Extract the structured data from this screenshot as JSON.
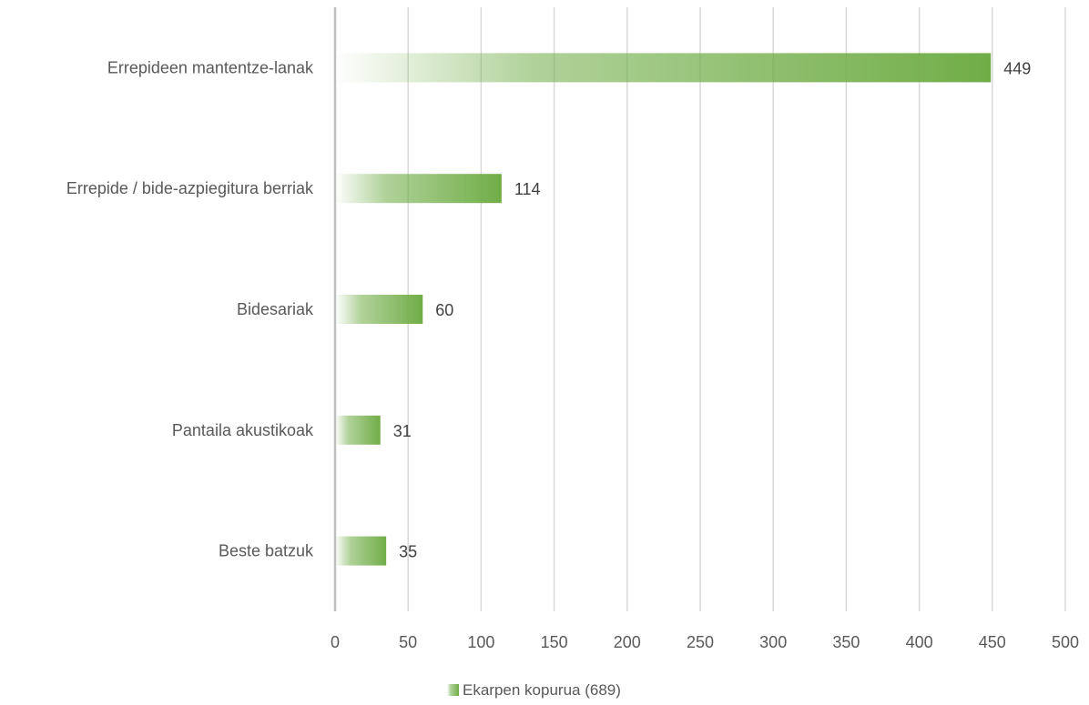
{
  "chart_data": {
    "type": "bar",
    "orientation": "horizontal",
    "categories": [
      "Errepideen mantentze-lanak",
      "Errepide / bide-azpiegitura berriak",
      "Bidesariak",
      "Pantaila akustikoak",
      "Beste batzuk"
    ],
    "series": [
      {
        "name": "Ekarpen kopurua (689)",
        "values": [
          449,
          114,
          60,
          31,
          35
        ],
        "color": "#70ad47"
      }
    ],
    "data_labels": [
      "449",
      "114",
      "60",
      "31",
      "35"
    ],
    "x_ticks": [
      "0",
      "50",
      "100",
      "150",
      "200",
      "250",
      "300",
      "350",
      "400",
      "450",
      "500"
    ],
    "xlim": [
      0,
      500
    ],
    "grid": true,
    "legend_position": "bottom",
    "title": "",
    "xlabel": "",
    "ylabel": ""
  }
}
